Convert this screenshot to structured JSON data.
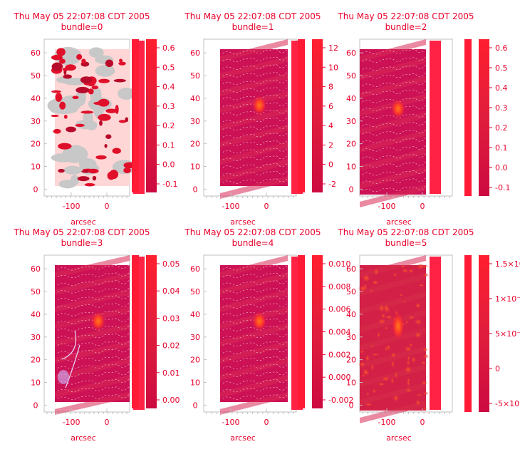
{
  "figure": {
    "panels": [
      {
        "id": "bundle0",
        "title_main": "Thu May 05 22:07:08 CDT 2005",
        "title_sub": "bundle=0",
        "xlabel": "arcsec",
        "xticks": [
          -100,
          0
        ],
        "yticks": [
          0,
          10,
          20,
          30,
          40,
          50,
          60
        ],
        "cbar_ticks": [
          "-0.1",
          "0.0",
          "0.1",
          "0.2",
          "0.3",
          "0.4",
          "0.5",
          "0.6"
        ],
        "style": "blotchy"
      },
      {
        "id": "bundle1",
        "title_main": "Thu May 05 22:07:08 CDT 2005",
        "title_sub": "bundle=1",
        "xlabel": "arcsec",
        "xticks": [
          -100,
          0
        ],
        "yticks": [
          0,
          10,
          20,
          30,
          40,
          50,
          60
        ],
        "cbar_ticks": [
          "-2",
          "0",
          "2",
          "4",
          "6",
          "8",
          "10",
          "12"
        ],
        "style": "blob"
      },
      {
        "id": "bundle2",
        "title_main": "Thu May 05 22:07:08 CDT 2005",
        "title_sub": "bundle=2",
        "xlabel": "arcsec",
        "xticks": [
          -100,
          0
        ],
        "yticks": [
          0,
          10,
          20,
          30,
          40,
          50,
          60
        ],
        "cbar_ticks": [
          "-0.1",
          "0.0",
          "0.1",
          "0.2",
          "0.3",
          "0.4",
          "0.5",
          "0.6"
        ],
        "style": "blob"
      },
      {
        "id": "bundle3",
        "title_main": "Thu May 05 22:07:08 CDT 2005",
        "title_sub": "bundle=3",
        "xlabel": "arcsec",
        "xticks": [
          -100,
          0
        ],
        "yticks": [
          0,
          10,
          20,
          30,
          40,
          50,
          60
        ],
        "cbar_ticks": [
          "0.00",
          "0.01",
          "0.02",
          "0.03",
          "0.04",
          "0.05"
        ],
        "style": "blob_contours"
      },
      {
        "id": "bundle4",
        "title_main": "Thu May 05 22:07:08 CDT 2005",
        "title_sub": "bundle=4",
        "xlabel": "arcsec",
        "xticks": [
          -100,
          0
        ],
        "yticks": [
          0,
          10,
          20,
          30,
          40,
          50,
          60
        ],
        "cbar_ticks": [
          "-0.002",
          "0.000",
          "0.002",
          "0.004",
          "0.006",
          "0.008",
          "0.010"
        ],
        "style": "blob"
      },
      {
        "id": "bundle5",
        "title_main": "Thu May 05 22:07:08 CDT 2005",
        "title_sub": "bundle=5",
        "xlabel": "arcsec",
        "xticks": [
          -100,
          0
        ],
        "yticks": [
          0,
          10,
          20,
          30,
          40,
          50,
          60
        ],
        "cbar_ticks": [
          "-5×10⁻⁴",
          "0",
          "5×10⁻⁴",
          "1×10⁻³",
          "1.5×10⁻³"
        ],
        "style": "noisy"
      }
    ]
  },
  "colors": {
    "accent": "#e8002a",
    "map_base": "#cc1155",
    "map_hot": "#ff5a1e",
    "bright_bar": "#ff2244",
    "pink_bg": "#ffd6d6",
    "grey_patch": "#c8c8c8",
    "contour": "#ffffff",
    "text": "#e8002a",
    "axis": "#c0c0c0"
  },
  "chart_data": [
    {
      "type": "heatmap",
      "title": "Thu May 05 22:07:08 CDT 2005 bundle=0",
      "xlabel": "arcsec",
      "ylabel": "",
      "ylim": [
        0,
        62
      ],
      "colorbar_range": [
        -0.1,
        0.6
      ]
    },
    {
      "type": "heatmap",
      "title": "Thu May 05 22:07:08 CDT 2005 bundle=1",
      "xlabel": "arcsec",
      "ylabel": "",
      "ylim": [
        0,
        62
      ],
      "colorbar_range": [
        -2,
        12
      ]
    },
    {
      "type": "heatmap",
      "title": "Thu May 05 22:07:08 CDT 2005 bundle=2",
      "xlabel": "arcsec",
      "ylabel": "",
      "ylim": [
        0,
        62
      ],
      "colorbar_range": [
        -0.1,
        0.6
      ]
    },
    {
      "type": "heatmap",
      "title": "Thu May 05 22:07:08 CDT 2005 bundle=3",
      "xlabel": "arcsec",
      "ylabel": "",
      "ylim": [
        0,
        62
      ],
      "colorbar_range": [
        0.0,
        0.05
      ]
    },
    {
      "type": "heatmap",
      "title": "Thu May 05 22:07:08 CDT 2005 bundle=4",
      "xlabel": "arcsec",
      "ylabel": "",
      "ylim": [
        0,
        62
      ],
      "colorbar_range": [
        -0.002,
        0.01
      ]
    },
    {
      "type": "heatmap",
      "title": "Thu May 05 22:07:08 CDT 2005 bundle=5",
      "xlabel": "arcsec",
      "ylabel": "",
      "ylim": [
        0,
        62
      ],
      "colorbar_range": [
        -0.0005,
        0.0015
      ]
    }
  ]
}
